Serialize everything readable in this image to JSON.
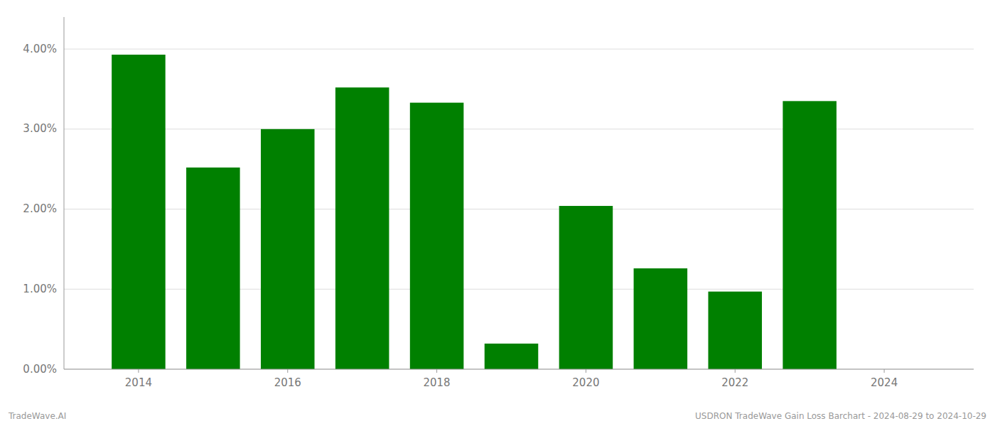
{
  "chart_data": {
    "type": "bar",
    "x": [
      2014,
      2015,
      2016,
      2017,
      2018,
      2019,
      2020,
      2021,
      2022,
      2023,
      2024
    ],
    "values": [
      0.0393,
      0.0252,
      0.03,
      0.0352,
      0.0333,
      0.0032,
      0.0204,
      0.0126,
      0.0097,
      0.0335,
      0.0
    ],
    "color": "#008000",
    "xlim": [
      2013.0,
      2025.2
    ],
    "xticks": [
      2014,
      2016,
      2018,
      2020,
      2022,
      2024
    ],
    "ylim": [
      0,
      0.044
    ],
    "yticks": [
      {
        "value": 0.0,
        "label": "0.00%"
      },
      {
        "value": 0.01,
        "label": "1.00%"
      },
      {
        "value": 0.02,
        "label": "2.00%"
      },
      {
        "value": 0.03,
        "label": "3.00%"
      },
      {
        "value": 0.04,
        "label": "4.00%"
      }
    ],
    "grid": true,
    "annotations": [
      "TradeWave.AI",
      "USDRON TradeWave Gain Loss Barchart - 2024-08-29 to 2024-10-29"
    ]
  }
}
